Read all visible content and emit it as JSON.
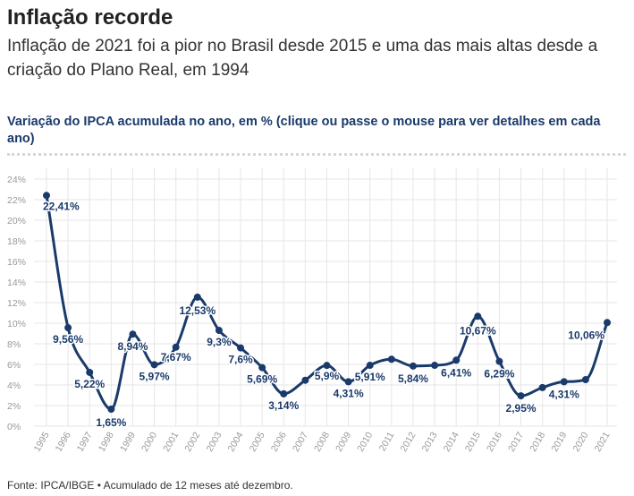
{
  "header": {
    "title": "Inflação recorde",
    "subtitle": "Inflação de 2021 foi a pior no Brasil desde 2015 e uma das mais altas desde a criação do Plano Real, em 1994",
    "chart_caption": "Variação do IPCA acumulada no ano, em % (clique ou passe o mouse para ver detalhes em cada ano)"
  },
  "footer": {
    "source": "Fonte: IPCA/IBGE • Acumulado de 12 meses até dezembro."
  },
  "colors": {
    "line": "#1a3a6b",
    "grid": "#e6e6e6",
    "tick": "#999999"
  },
  "chart_data": {
    "type": "line",
    "title": "Variação do IPCA acumulada no ano, em % (clique ou passe o mouse para ver detalhes em cada ano)",
    "x": [
      "1995",
      "1996",
      "1997",
      "1998",
      "1999",
      "2000",
      "2001",
      "2002",
      "2003",
      "2004",
      "2005",
      "2006",
      "2007",
      "2008",
      "2009",
      "2010",
      "2011",
      "2012",
      "2013",
      "2014",
      "2015",
      "2016",
      "2017",
      "2018",
      "2019",
      "2020",
      "2021"
    ],
    "series": [
      {
        "values": [
          22.41,
          9.56,
          5.22,
          1.65,
          8.94,
          5.97,
          7.67,
          12.53,
          9.3,
          7.6,
          5.69,
          3.14,
          4.46,
          5.9,
          4.31,
          5.91,
          6.5,
          5.84,
          5.91,
          6.41,
          10.67,
          6.29,
          2.95,
          3.75,
          4.31,
          4.52,
          10.06
        ]
      }
    ],
    "data_labels": [
      {
        "year": "1995",
        "text": "22,41%"
      },
      {
        "year": "1996",
        "text": "9,56%"
      },
      {
        "year": "1997",
        "text": "5,22%"
      },
      {
        "year": "1998",
        "text": "1,65%"
      },
      {
        "year": "1999",
        "text": "8,94%"
      },
      {
        "year": "2000",
        "text": "5,97%"
      },
      {
        "year": "2001",
        "text": "7,67%"
      },
      {
        "year": "2002",
        "text": "12,53%"
      },
      {
        "year": "2003",
        "text": "9,3%"
      },
      {
        "year": "2004",
        "text": "7,6%"
      },
      {
        "year": "2005",
        "text": "5,69%"
      },
      {
        "year": "2006",
        "text": "3,14%"
      },
      {
        "year": "2008",
        "text": "5,9%"
      },
      {
        "year": "2009",
        "text": "4,31%"
      },
      {
        "year": "2010",
        "text": "5,91%"
      },
      {
        "year": "2012",
        "text": "5,84%"
      },
      {
        "year": "2014",
        "text": "6,41%"
      },
      {
        "year": "2015",
        "text": "10,67%"
      },
      {
        "year": "2016",
        "text": "6,29%"
      },
      {
        "year": "2017",
        "text": "2,95%"
      },
      {
        "year": "2019",
        "text": "4,31%"
      },
      {
        "year": "2021",
        "text": "10,06%"
      }
    ],
    "y_ticks": [
      "0%",
      "2%",
      "4%",
      "6%",
      "8%",
      "10%",
      "12%",
      "14%",
      "16%",
      "18%",
      "20%",
      "22%",
      "24%"
    ],
    "ylim": [
      0,
      24
    ],
    "grid": true,
    "legend": "none"
  }
}
